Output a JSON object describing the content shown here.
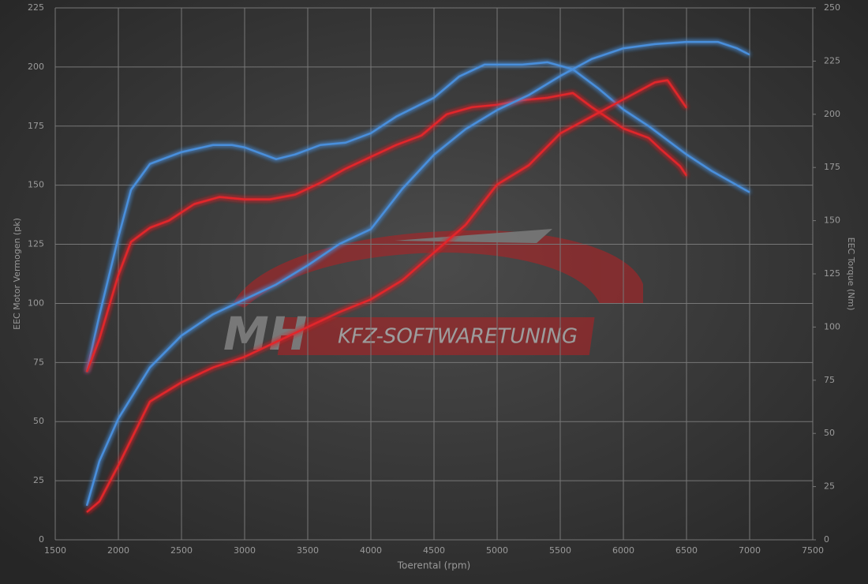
{
  "chart_data": {
    "type": "line",
    "xlabel": "Toerental (rpm)",
    "ylabel": "EEC Motor Vermogen (pk)",
    "y2label": "EEC Torque (Nm)",
    "watermark": {
      "brand": "MH",
      "text": "KFZ-SOFTWARETUNING"
    },
    "xlim": [
      1500,
      7500
    ],
    "xticks": [
      1500,
      2000,
      2500,
      3000,
      3500,
      4000,
      4500,
      5000,
      5500,
      6000,
      6500,
      7000,
      7500
    ],
    "ylim": [
      0,
      225
    ],
    "yticks": [
      0,
      25,
      50,
      75,
      100,
      125,
      150,
      175,
      200,
      225
    ],
    "y2lim": [
      0,
      250
    ],
    "y2ticks": [
      0,
      25,
      50,
      75,
      100,
      125,
      150,
      175,
      200,
      225,
      250
    ],
    "grid": true,
    "series": [
      {
        "color": "#4a8fdc",
        "axis": "y",
        "x": [
          1750,
          1850,
          2000,
          2100,
          2250,
          2500,
          2750,
          2900,
          3000,
          3250,
          3400,
          3600,
          3800,
          4000,
          4200,
          4500,
          4700,
          4900,
          5200,
          5400,
          5600,
          5800,
          6000,
          6200,
          6500,
          6700,
          6900,
          7000
        ],
        "values": [
          71,
          95,
          128,
          148,
          159,
          164,
          167,
          167,
          166,
          161,
          163,
          167,
          168,
          172,
          179,
          187,
          196,
          201,
          201,
          202,
          199,
          191,
          182,
          175,
          163,
          156,
          150,
          147
        ]
      },
      {
        "color": "#e2282b",
        "axis": "y",
        "x": [
          1750,
          1850,
          2000,
          2100,
          2250,
          2400,
          2600,
          2800,
          3000,
          3200,
          3400,
          3600,
          3800,
          4000,
          4200,
          4400,
          4600,
          4800,
          5000,
          5200,
          5400,
          5600,
          5750,
          6000,
          6200,
          6300,
          6450,
          6500
        ],
        "values": [
          71,
          85,
          112,
          126,
          132,
          135,
          142,
          145,
          144,
          144,
          146,
          151,
          157,
          162,
          167,
          171,
          180,
          183,
          184,
          186,
          187,
          189,
          183,
          174,
          170,
          165,
          158,
          154
        ]
      },
      {
        "color": "#4a8fdc",
        "axis": "y2",
        "x": [
          1750,
          1850,
          2000,
          2250,
          2500,
          2750,
          3000,
          3250,
          3500,
          3750,
          4000,
          4250,
          4500,
          4750,
          5000,
          5250,
          5500,
          5750,
          6000,
          6250,
          6500,
          6750,
          6900,
          7000
        ],
        "values": [
          16,
          37,
          57,
          81,
          96,
          106,
          113,
          120,
          129,
          139,
          146,
          165,
          181,
          193,
          202,
          209,
          218,
          226,
          231,
          233,
          234,
          234,
          231,
          228
        ]
      },
      {
        "color": "#e2282b",
        "axis": "y2",
        "x": [
          1750,
          1850,
          2000,
          2250,
          2500,
          2750,
          3000,
          3250,
          3500,
          3750,
          4000,
          4250,
          4500,
          4750,
          5000,
          5250,
          5500,
          5750,
          6000,
          6250,
          6350,
          6500
        ],
        "values": [
          13,
          18,
          35,
          65,
          74,
          81,
          86,
          93,
          100,
          107,
          113,
          122,
          135,
          148,
          167,
          176,
          191,
          199,
          207,
          215,
          216,
          203
        ]
      }
    ]
  }
}
